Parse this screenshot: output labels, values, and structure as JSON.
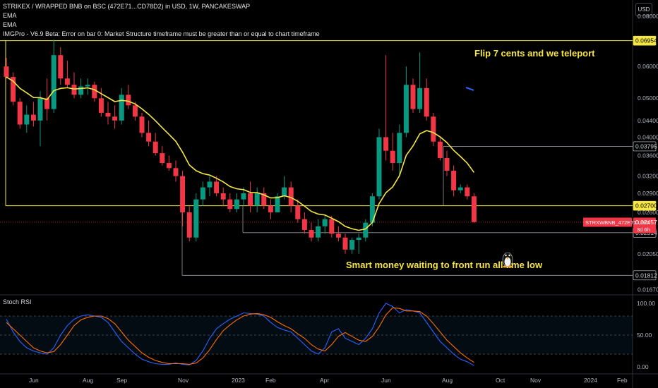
{
  "header": {
    "title": "STRIKEX / WRAPPED BNB on BSC (472E71...CD78D2) in USD, 1W, PANCAKESWAP",
    "indicator_1": "EMA",
    "indicator_2": "EMA",
    "indicator_3": "IMGPro - V6.9 Beta: Error on bar 0: Market Structure timeframe must be greater than or equal to chart timeframe"
  },
  "currency_button": "USD",
  "price_axis_ticks": [
    "0.08000",
    "0.06954",
    "0.06000",
    "0.05000",
    "0.04400",
    "0.04000",
    "0.03795",
    "0.03600",
    "0.03200",
    "0.02900",
    "0.02700",
    "0.02600",
    "0.02457",
    "0.02314",
    "0.02050",
    "0.01812",
    "0.01670"
  ],
  "price_tags": {
    "level_top": "0.06954",
    "level_upper": "0.03795",
    "level_mid": "0.02700",
    "level_low1": "0.02314",
    "level_low2": "0.01812",
    "symbol_label": "STRXWBNB_472E71.USD",
    "last_price": "0.02457",
    "countdown": "3d 6h"
  },
  "annotations": {
    "top": "Flip 7 cents and we teleport",
    "bottom": "Smart money waiting to front run all time low"
  },
  "time_axis": [
    "Jun",
    "Aug",
    "Sep",
    "Nov",
    "2023",
    "Feb",
    "Apr",
    "Jun",
    "Aug",
    "Oct",
    "Nov",
    "2024",
    "Feb"
  ],
  "rsi_panel": {
    "title": "Stoch RSI",
    "ticks": [
      "100.00",
      "50.00",
      "0.00"
    ]
  },
  "colors": {
    "up": "#089981",
    "down": "#f23645",
    "ema": "#f5e642",
    "rsi_k": "#2962ff",
    "rsi_d": "#ff6d00",
    "level": "#f5e642"
  },
  "chart_data": {
    "type": "candlestick",
    "interval": "1W",
    "ylim": [
      0.0162,
      0.085
    ],
    "y_scale": "log",
    "horizontal_levels": [
      0.06954,
      0.03795,
      0.027,
      0.02314,
      0.01812
    ],
    "candles": [
      [
        0.06,
        0.063,
        0.056,
        0.0565
      ],
      [
        0.0565,
        0.058,
        0.048,
        0.049
      ],
      [
        0.049,
        0.05,
        0.042,
        0.043
      ],
      [
        0.043,
        0.048,
        0.041,
        0.0455
      ],
      [
        0.0455,
        0.049,
        0.0425,
        0.044
      ],
      [
        0.044,
        0.052,
        0.038,
        0.05
      ],
      [
        0.05,
        0.056,
        0.044,
        0.047
      ],
      [
        0.047,
        0.07,
        0.046,
        0.064
      ],
      [
        0.064,
        0.067,
        0.054,
        0.056
      ],
      [
        0.056,
        0.062,
        0.053,
        0.054
      ],
      [
        0.054,
        0.058,
        0.05,
        0.051
      ],
      [
        0.051,
        0.056,
        0.05,
        0.0535
      ],
      [
        0.0535,
        0.056,
        0.051,
        0.054
      ],
      [
        0.054,
        0.055,
        0.049,
        0.05
      ],
      [
        0.05,
        0.053,
        0.045,
        0.046
      ],
      [
        0.046,
        0.049,
        0.043,
        0.045
      ],
      [
        0.045,
        0.048,
        0.042,
        0.044
      ],
      [
        0.044,
        0.053,
        0.043,
        0.051
      ],
      [
        0.051,
        0.054,
        0.047,
        0.048
      ],
      [
        0.048,
        0.049,
        0.044,
        0.045
      ],
      [
        0.045,
        0.046,
        0.04,
        0.041
      ],
      [
        0.041,
        0.044,
        0.038,
        0.039
      ],
      [
        0.039,
        0.041,
        0.036,
        0.0365
      ],
      [
        0.0365,
        0.038,
        0.034,
        0.0345
      ],
      [
        0.0345,
        0.036,
        0.033,
        0.0335
      ],
      [
        0.0335,
        0.035,
        0.031,
        0.032
      ],
      [
        0.032,
        0.033,
        0.024,
        0.026
      ],
      [
        0.026,
        0.027,
        0.022,
        0.0225
      ],
      [
        0.0225,
        0.029,
        0.022,
        0.028
      ],
      [
        0.028,
        0.031,
        0.027,
        0.03
      ],
      [
        0.03,
        0.032,
        0.0285,
        0.031
      ],
      [
        0.031,
        0.032,
        0.0285,
        0.029
      ],
      [
        0.029,
        0.03,
        0.027,
        0.028
      ],
      [
        0.028,
        0.029,
        0.026,
        0.0265
      ],
      [
        0.0265,
        0.029,
        0.026,
        0.028
      ],
      [
        0.028,
        0.03,
        0.027,
        0.029
      ],
      [
        0.029,
        0.031,
        0.026,
        0.027
      ],
      [
        0.027,
        0.03,
        0.026,
        0.029
      ],
      [
        0.029,
        0.03,
        0.0265,
        0.027
      ],
      [
        0.027,
        0.028,
        0.025,
        0.026
      ],
      [
        0.026,
        0.029,
        0.026,
        0.0285
      ],
      [
        0.0285,
        0.032,
        0.028,
        0.03
      ],
      [
        0.03,
        0.031,
        0.026,
        0.027
      ],
      [
        0.027,
        0.028,
        0.0245,
        0.025
      ],
      [
        0.025,
        0.026,
        0.023,
        0.0235
      ],
      [
        0.0235,
        0.0245,
        0.022,
        0.0225
      ],
      [
        0.0225,
        0.025,
        0.022,
        0.024
      ],
      [
        0.024,
        0.0255,
        0.023,
        0.025
      ],
      [
        0.025,
        0.0255,
        0.0225,
        0.023
      ],
      [
        0.023,
        0.024,
        0.022,
        0.0225
      ],
      [
        0.0225,
        0.023,
        0.0205,
        0.021
      ],
      [
        0.021,
        0.0225,
        0.0205,
        0.0222
      ],
      [
        0.0222,
        0.023,
        0.0205,
        0.0225
      ],
      [
        0.0225,
        0.025,
        0.022,
        0.0245
      ],
      [
        0.0245,
        0.029,
        0.024,
        0.0285
      ],
      [
        0.0285,
        0.042,
        0.028,
        0.04
      ],
      [
        0.04,
        0.064,
        0.035,
        0.037
      ],
      [
        0.037,
        0.041,
        0.033,
        0.0345
      ],
      [
        0.0345,
        0.043,
        0.032,
        0.041
      ],
      [
        0.041,
        0.06,
        0.04,
        0.054
      ],
      [
        0.054,
        0.056,
        0.046,
        0.047
      ],
      [
        0.047,
        0.065,
        0.046,
        0.053
      ],
      [
        0.053,
        0.056,
        0.044,
        0.045
      ],
      [
        0.045,
        0.046,
        0.038,
        0.039
      ],
      [
        0.039,
        0.04,
        0.035,
        0.0355
      ],
      [
        0.0355,
        0.037,
        0.032,
        0.033
      ],
      [
        0.033,
        0.034,
        0.0285,
        0.0295
      ],
      [
        0.0295,
        0.0305,
        0.029,
        0.03
      ],
      [
        0.03,
        0.0305,
        0.028,
        0.0285
      ],
      [
        0.0285,
        0.029,
        0.0245,
        0.0246
      ]
    ],
    "rsi_k": [
      75,
      55,
      40,
      30,
      25,
      22,
      20,
      30,
      50,
      65,
      75,
      80,
      82,
      80,
      78,
      70,
      55,
      40,
      30,
      20,
      12,
      8,
      5,
      4,
      4,
      6,
      4,
      3,
      10,
      25,
      45,
      60,
      68,
      75,
      80,
      85,
      84,
      83,
      80,
      70,
      62,
      58,
      55,
      45,
      35,
      25,
      20,
      30,
      55,
      60,
      45,
      40,
      35,
      45,
      60,
      85,
      100,
      95,
      85,
      90,
      88,
      85,
      70,
      55,
      40,
      30,
      20,
      12,
      8,
      2
    ],
    "rsi_d": [
      70,
      60,
      50,
      40,
      30,
      25,
      22,
      24,
      35,
      50,
      65,
      74,
      78,
      80,
      80,
      76,
      68,
      55,
      42,
      32,
      22,
      15,
      10,
      7,
      5,
      5,
      5,
      4,
      6,
      14,
      27,
      43,
      57,
      66,
      74,
      80,
      83,
      84,
      82,
      78,
      71,
      65,
      60,
      52,
      45,
      35,
      28,
      25,
      35,
      48,
      54,
      48,
      42,
      40,
      48,
      63,
      82,
      93,
      92,
      88,
      88,
      87,
      80,
      68,
      55,
      42,
      32,
      22,
      14,
      7
    ]
  }
}
